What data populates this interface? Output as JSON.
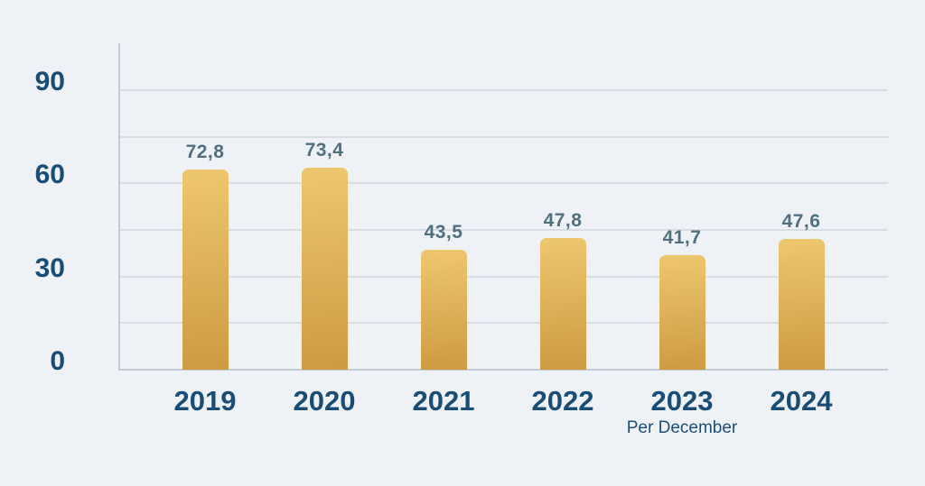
{
  "chart_data": {
    "type": "bar",
    "categories": [
      "2019",
      "2020",
      "2021",
      "2022",
      "2023",
      "2024"
    ],
    "values": [
      72.8,
      73.4,
      43.5,
      47.8,
      41.7,
      47.6
    ],
    "value_labels": [
      "72,8",
      "73,4",
      "43,5",
      "47,8",
      "41,7",
      "47,6"
    ],
    "title": "",
    "xlabel": "",
    "ylabel": "",
    "ylim": [
      0,
      90
    ],
    "yticks": [
      90,
      60,
      30,
      0
    ],
    "ytick_labels": [
      "90",
      "60",
      "30",
      "0"
    ],
    "grid": "horizontal, minor lines every 15 units",
    "legend": "none",
    "decimal_separator": ",",
    "note": {
      "text": "Per December",
      "under_category": "2023"
    }
  },
  "colors": {
    "background": "#eef1f6",
    "bar_top": "#edc76f",
    "bar_bottom": "#cd9b41",
    "grid_line": "#d8dce3",
    "axis_line": "#c4cad4",
    "year_label": "#1a4d75",
    "value_label": "#507080",
    "note_text": "#1e4f79"
  }
}
